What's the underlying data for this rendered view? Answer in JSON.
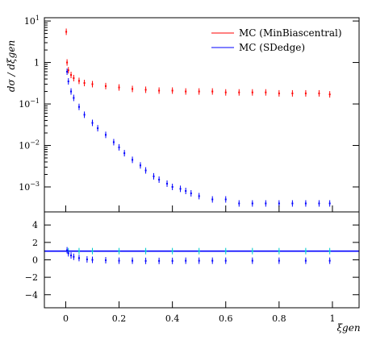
{
  "chart_data": [
    {
      "type": "scatter",
      "panel": "main",
      "ylabel": "dσ / dξgen",
      "yscale": "log",
      "xlim": [
        -0.08,
        1.1
      ],
      "ylim": [
        0.00025,
        12
      ],
      "yticks": [
        {
          "value": 0.001,
          "base": "10",
          "exp": "−3"
        },
        {
          "value": 0.01,
          "base": "10",
          "exp": "−2"
        },
        {
          "value": 0.1,
          "base": "10",
          "exp": "−1"
        },
        {
          "value": 1,
          "base": "1",
          "exp": ""
        },
        {
          "value": 10,
          "base": "10",
          "exp": "1"
        }
      ],
      "legend_position": "top-right",
      "series": [
        {
          "name": "MC (MinBiascentral)",
          "color": "#ff0000",
          "x": [
            0.002,
            0.005,
            0.01,
            0.02,
            0.03,
            0.05,
            0.07,
            0.1,
            0.15,
            0.2,
            0.25,
            0.3,
            0.35,
            0.4,
            0.45,
            0.5,
            0.55,
            0.6,
            0.65,
            0.7,
            0.75,
            0.8,
            0.85,
            0.9,
            0.95,
            0.99
          ],
          "y": [
            5.5,
            1.0,
            0.65,
            0.5,
            0.42,
            0.36,
            0.32,
            0.3,
            0.27,
            0.25,
            0.23,
            0.22,
            0.21,
            0.21,
            0.2,
            0.2,
            0.2,
            0.19,
            0.19,
            0.19,
            0.19,
            0.18,
            0.18,
            0.18,
            0.18,
            0.17
          ]
        },
        {
          "name": "MC (SDedge)",
          "color": "#0000ff",
          "x": [
            0.005,
            0.01,
            0.02,
            0.03,
            0.05,
            0.07,
            0.1,
            0.12,
            0.15,
            0.18,
            0.2,
            0.22,
            0.25,
            0.28,
            0.3,
            0.33,
            0.35,
            0.38,
            0.4,
            0.43,
            0.45,
            0.47,
            0.5,
            0.55,
            0.6,
            0.65,
            0.7,
            0.75,
            0.8,
            0.85,
            0.9,
            0.95,
            0.99
          ],
          "y": [
            0.6,
            0.35,
            0.2,
            0.14,
            0.085,
            0.055,
            0.035,
            0.026,
            0.018,
            0.012,
            0.009,
            0.0065,
            0.0045,
            0.0033,
            0.0025,
            0.0018,
            0.0015,
            0.0012,
            0.001,
            0.0009,
            0.0008,
            0.0007,
            0.0006,
            0.0005,
            0.0005,
            0.0004,
            0.0004,
            0.0004,
            0.0004,
            0.0004,
            0.0004,
            0.0004,
            0.0004
          ]
        }
      ]
    },
    {
      "type": "scatter",
      "panel": "ratio",
      "xlabel": "ξgen",
      "xlim": [
        -0.08,
        1.1
      ],
      "ylim": [
        -5.5,
        5.5
      ],
      "yticks": [
        "−4",
        "−2",
        "0",
        "2",
        "4"
      ],
      "xticks": [
        "0",
        "0.2",
        "0.4",
        "0.6",
        "0.8",
        "1"
      ],
      "reference_line": 1,
      "series": [
        {
          "color": "#00cccc",
          "x": [
            0.01,
            0.05,
            0.1,
            0.2,
            0.3,
            0.4,
            0.5,
            0.6,
            0.7,
            0.8,
            0.9,
            0.99
          ],
          "y": [
            1,
            1,
            1,
            1,
            1,
            1,
            1,
            1,
            1,
            1,
            1,
            1
          ]
        },
        {
          "color": "#0000ff",
          "x": [
            0.005,
            0.01,
            0.02,
            0.03,
            0.05,
            0.08,
            0.1,
            0.15,
            0.2,
            0.25,
            0.3,
            0.35,
            0.4,
            0.45,
            0.5,
            0.55,
            0.6,
            0.7,
            0.8,
            0.9,
            0.99
          ],
          "y": [
            1.1,
            0.75,
            0.5,
            0.35,
            0.2,
            0.05,
            0.0,
            -0.05,
            -0.1,
            -0.1,
            -0.12,
            -0.12,
            -0.12,
            -0.1,
            -0.1,
            -0.1,
            -0.1,
            -0.1,
            -0.1,
            -0.1,
            -0.1
          ]
        }
      ]
    }
  ]
}
